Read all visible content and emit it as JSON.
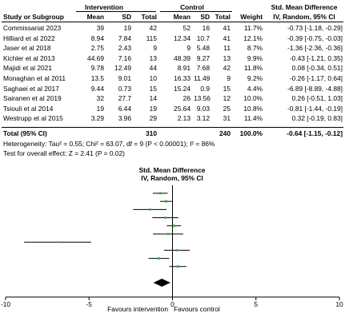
{
  "table": {
    "header_intervention": "Intervention",
    "header_control": "Control",
    "header_smd_title": "Std. Mean Difference",
    "header_smd_method": "IV, Random, 95% CI",
    "col_study": "Study or Subgroup",
    "col_mean": "Mean",
    "col_sd": "SD",
    "col_total": "Total",
    "col_weight": "Weight",
    "rows": [
      {
        "study": "Commissariat 2023",
        "i_mean": "39",
        "i_sd": "19",
        "i_total": "42",
        "c_mean": "52",
        "c_sd": "16",
        "c_total": "41",
        "weight": "11.7%",
        "ci": "-0.73 [-1.18, -0.29]"
      },
      {
        "study": "Hilliard et al 2022",
        "i_mean": "8.94",
        "i_sd": "7.84",
        "i_total": "115",
        "c_mean": "12.34",
        "c_sd": "10.7",
        "c_total": "41",
        "weight": "12.1%",
        "ci": "-0.39 [-0.75, -0.03]"
      },
      {
        "study": "Jaser et al 2018",
        "i_mean": "2.75",
        "i_sd": "2.43",
        "i_total": "9",
        "c_mean": "9",
        "c_sd": "5.48",
        "c_total": "11",
        "weight": "8.7%",
        "ci": "-1.36 [-2.36, -0.36]"
      },
      {
        "study": "Kichler et al 2013",
        "i_mean": "44.69",
        "i_sd": "7.16",
        "i_total": "13",
        "c_mean": "48.39",
        "c_sd": "9.27",
        "c_total": "13",
        "weight": "9.9%",
        "ci": "-0.43 [-1.21, 0.35]"
      },
      {
        "study": "Majidi et al 2021",
        "i_mean": "9.78",
        "i_sd": "12.49",
        "i_total": "44",
        "c_mean": "8.91",
        "c_sd": "7.68",
        "c_total": "42",
        "weight": "11.8%",
        "ci": "0.08 [-0.34, 0.51]"
      },
      {
        "study": "Monaghan et al 2011",
        "i_mean": "13.5",
        "i_sd": "9.01",
        "i_total": "10",
        "c_mean": "16.33",
        "c_sd": "11.49",
        "c_total": "9",
        "weight": "9.2%",
        "ci": "-0.26 [-1.17, 0.64]"
      },
      {
        "study": "Saghaei et al 2017",
        "i_mean": "9.44",
        "i_sd": "0.73",
        "i_total": "15",
        "c_mean": "15.24",
        "c_sd": "0.9",
        "c_total": "15",
        "weight": "4.4%",
        "ci": "-6.89 [-8.89, -4.88]"
      },
      {
        "study": "Sairanen et al 2019",
        "i_mean": "32",
        "i_sd": "27.7",
        "i_total": "14",
        "c_mean": "26",
        "c_sd": "13.56",
        "c_total": "12",
        "weight": "10.0%",
        "ci": "0.26 [-0.51, 1.03]"
      },
      {
        "study": "Tsiouli et al 2014",
        "i_mean": "19",
        "i_sd": "6.44",
        "i_total": "19",
        "c_mean": "25.64",
        "c_sd": "9.03",
        "c_total": "25",
        "weight": "10.8%",
        "ci": "-0.81 [-1.44, -0.19]"
      },
      {
        "study": "Westrupp et al 2015",
        "i_mean": "3.29",
        "i_sd": "3.96",
        "i_total": "29",
        "c_mean": "2.13",
        "c_sd": "3.12",
        "c_total": "31",
        "weight": "11.4%",
        "ci": "0.32 [-0.19, 0.83]"
      }
    ],
    "total": {
      "label": "Total (95% CI)",
      "i_total": "310",
      "c_total": "240",
      "weight": "100.0%",
      "ci": "-0.64 [-1.15, -0.12]"
    },
    "heterogeneity": "Heterogeneity: Tau² = 0.55; Chi² = 63.07, df = 9 (P < 0.00001); I² = 86%",
    "overall_effect": "Test for overall effect: Z = 2.41 (P = 0.02)"
  },
  "chart_data": {
    "type": "forest",
    "title": "Std. Mean Difference",
    "subtitle": "IV, Random, 95% CI",
    "xlim": [
      -10,
      10
    ],
    "ticks": [
      "-10",
      "-5",
      "0",
      "5",
      "10"
    ],
    "tick_values": [
      -10,
      -5,
      0,
      5,
      10
    ],
    "xlabel_left": "Favours intervention",
    "xlabel_right": "Favours control",
    "studies": [
      {
        "est": -0.73,
        "lo": -1.18,
        "hi": -0.29,
        "weight": 11.7
      },
      {
        "est": -0.39,
        "lo": -0.75,
        "hi": -0.03,
        "weight": 12.1
      },
      {
        "est": -1.36,
        "lo": -2.36,
        "hi": -0.36,
        "weight": 8.7
      },
      {
        "est": -0.43,
        "lo": -1.21,
        "hi": 0.35,
        "weight": 9.9
      },
      {
        "est": 0.08,
        "lo": -0.34,
        "hi": 0.51,
        "weight": 11.8
      },
      {
        "est": -0.26,
        "lo": -1.17,
        "hi": 0.64,
        "weight": 9.2
      },
      {
        "est": -6.89,
        "lo": -8.89,
        "hi": -4.88,
        "weight": 4.4
      },
      {
        "est": 0.26,
        "lo": -0.51,
        "hi": 1.03,
        "weight": 10.0
      },
      {
        "est": -0.81,
        "lo": -1.44,
        "hi": -0.19,
        "weight": 10.8
      },
      {
        "est": 0.32,
        "lo": -0.19,
        "hi": 0.83,
        "weight": 11.4
      }
    ],
    "pooled": {
      "est": -0.64,
      "lo": -1.15,
      "hi": -0.12
    },
    "colors": {
      "point": "#3cb043",
      "line": "#000000"
    }
  }
}
